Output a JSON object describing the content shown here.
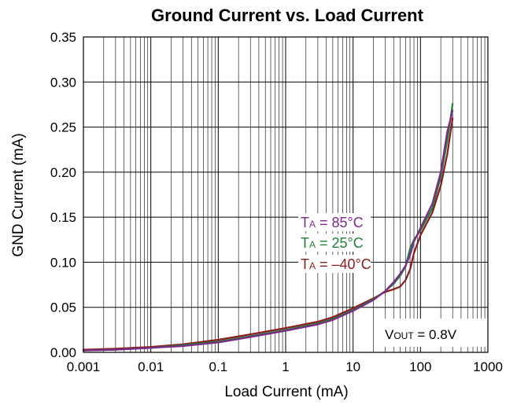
{
  "chart_data": {
    "type": "line",
    "title": "Ground Current vs. Load Current",
    "xlabel": "Load Current (mA)",
    "ylabel": "GND Current (mA)",
    "xscale": "log",
    "xlim": [
      0.001,
      1000
    ],
    "ylim": [
      0,
      0.35
    ],
    "grid": true,
    "x_ticks": [
      "0.001",
      "0.01",
      "0.1",
      "1",
      "10",
      "100",
      "1000"
    ],
    "y_ticks": [
      "0.00",
      "0.05",
      "0.10",
      "0.15",
      "0.20",
      "0.25",
      "0.30",
      "0.35"
    ],
    "series": [
      {
        "name": "TA = -40°C",
        "legend_main": "T",
        "legend_sub": "A",
        "legend_rest": " = –40°C",
        "color": "#8b1a1a",
        "x": [
          0.001,
          0.003,
          0.01,
          0.03,
          0.1,
          0.3,
          1,
          3,
          5,
          10,
          20,
          30,
          40,
          50,
          60,
          70,
          80,
          100,
          150,
          200,
          250,
          300
        ],
        "y": [
          0.003,
          0.004,
          0.006,
          0.009,
          0.014,
          0.02,
          0.027,
          0.034,
          0.039,
          0.049,
          0.06,
          0.067,
          0.07,
          0.073,
          0.08,
          0.092,
          0.11,
          0.13,
          0.155,
          0.185,
          0.22,
          0.26
        ]
      },
      {
        "name": "TA = 25°C",
        "legend_main": "T",
        "legend_sub": "A",
        "legend_rest": " = 25°C",
        "color": "#1e7e3a",
        "x": [
          0.001,
          0.003,
          0.01,
          0.03,
          0.1,
          0.3,
          1,
          3,
          5,
          10,
          20,
          30,
          40,
          50,
          60,
          70,
          80,
          100,
          150,
          200,
          250,
          300
        ],
        "y": [
          0.002,
          0.003,
          0.005,
          0.008,
          0.012,
          0.018,
          0.025,
          0.032,
          0.037,
          0.047,
          0.059,
          0.068,
          0.076,
          0.085,
          0.095,
          0.115,
          0.125,
          0.135,
          0.16,
          0.195,
          0.235,
          0.276
        ]
      },
      {
        "name": "TA = 85°C",
        "legend_main": "T",
        "legend_sub": "A",
        "legend_rest": " = 85°C",
        "color": "#7b2a8a",
        "x": [
          0.001,
          0.003,
          0.01,
          0.03,
          0.1,
          0.3,
          1,
          3,
          5,
          10,
          20,
          30,
          40,
          50,
          60,
          70,
          80,
          100,
          150,
          200,
          250,
          300
        ],
        "y": [
          0.002,
          0.003,
          0.005,
          0.007,
          0.011,
          0.017,
          0.024,
          0.031,
          0.036,
          0.046,
          0.058,
          0.068,
          0.078,
          0.087,
          0.096,
          0.108,
          0.123,
          0.138,
          0.165,
          0.2,
          0.245,
          0.268
        ]
      }
    ],
    "annotation": {
      "main": "V",
      "sub": "OUT",
      "rest": " =  0.8V"
    }
  }
}
